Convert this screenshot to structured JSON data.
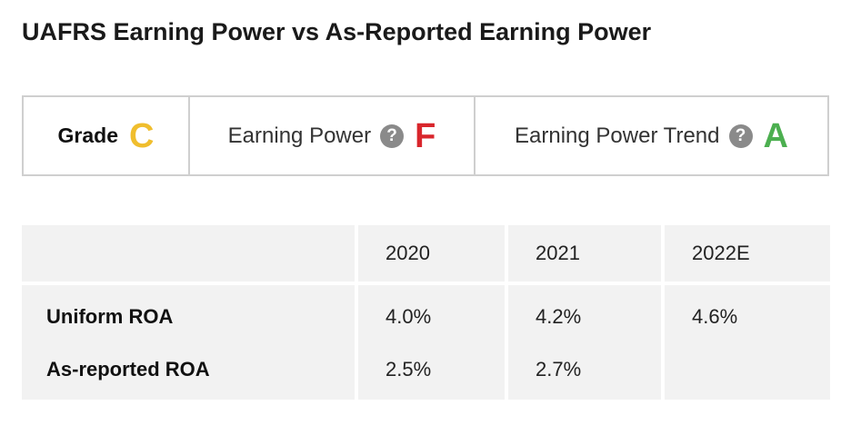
{
  "title": "UAFRS Earning Power vs As-Reported Earning Power",
  "grades": {
    "grade": {
      "label": "Grade",
      "value": "C",
      "color": "#f0be2e"
    },
    "earning_power": {
      "label": "Earning Power",
      "value": "F",
      "color": "#d9262c",
      "help_icon": "question-circle-icon"
    },
    "earning_power_trend": {
      "label": "Earning Power Trend",
      "value": "A",
      "color": "#4caf50",
      "help_icon": "question-circle-icon"
    }
  },
  "table": {
    "columns": [
      "",
      "2020",
      "2021",
      "2022E"
    ],
    "rows": [
      {
        "label": "Uniform ROA",
        "values": [
          "4.0%",
          "4.2%",
          "4.6%"
        ]
      },
      {
        "label": "As-reported ROA",
        "values": [
          "2.5%",
          "2.7%",
          ""
        ]
      }
    ]
  }
}
